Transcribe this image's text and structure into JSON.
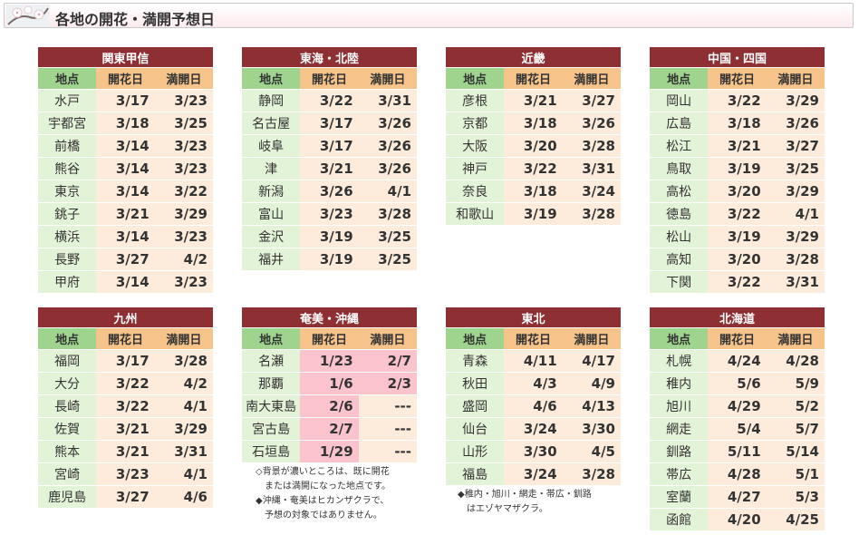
{
  "page": {
    "title": "各地の開花・満開予想日"
  },
  "columns": {
    "place": "地点",
    "bloom": "開花日",
    "full": "満開日"
  },
  "regions": [
    {
      "name": "関東甲信",
      "rows": [
        {
          "place": "水戸",
          "bloom": "3/17",
          "full": "3/23"
        },
        {
          "place": "宇都宮",
          "bloom": "3/18",
          "full": "3/25"
        },
        {
          "place": "前橋",
          "bloom": "3/14",
          "full": "3/23"
        },
        {
          "place": "熊谷",
          "bloom": "3/14",
          "full": "3/23"
        },
        {
          "place": "東京",
          "bloom": "3/14",
          "full": "3/22"
        },
        {
          "place": "銚子",
          "bloom": "3/21",
          "full": "3/29"
        },
        {
          "place": "横浜",
          "bloom": "3/14",
          "full": "3/23"
        },
        {
          "place": "長野",
          "bloom": "3/27",
          "full": "4/2"
        },
        {
          "place": "甲府",
          "bloom": "3/14",
          "full": "3/23"
        }
      ]
    },
    {
      "name": "東海・北陸",
      "rows": [
        {
          "place": "静岡",
          "bloom": "3/22",
          "full": "3/31"
        },
        {
          "place": "名古屋",
          "bloom": "3/17",
          "full": "3/26"
        },
        {
          "place": "岐阜",
          "bloom": "3/17",
          "full": "3/26"
        },
        {
          "place": "津",
          "bloom": "3/21",
          "full": "3/26"
        },
        {
          "place": "新潟",
          "bloom": "3/26",
          "full": "4/1"
        },
        {
          "place": "富山",
          "bloom": "3/23",
          "full": "3/28"
        },
        {
          "place": "金沢",
          "bloom": "3/19",
          "full": "3/25"
        },
        {
          "place": "福井",
          "bloom": "3/19",
          "full": "3/25"
        }
      ]
    },
    {
      "name": "近畿",
      "rows": [
        {
          "place": "彦根",
          "bloom": "3/21",
          "full": "3/27"
        },
        {
          "place": "京都",
          "bloom": "3/18",
          "full": "3/26"
        },
        {
          "place": "大阪",
          "bloom": "3/20",
          "full": "3/28"
        },
        {
          "place": "神戸",
          "bloom": "3/22",
          "full": "3/31"
        },
        {
          "place": "奈良",
          "bloom": "3/18",
          "full": "3/24"
        },
        {
          "place": "和歌山",
          "bloom": "3/19",
          "full": "3/28"
        }
      ]
    },
    {
      "name": "中国・四国",
      "rows": [
        {
          "place": "岡山",
          "bloom": "3/22",
          "full": "3/29"
        },
        {
          "place": "広島",
          "bloom": "3/18",
          "full": "3/26"
        },
        {
          "place": "松江",
          "bloom": "3/21",
          "full": "3/27"
        },
        {
          "place": "鳥取",
          "bloom": "3/19",
          "full": "3/25"
        },
        {
          "place": "高松",
          "bloom": "3/20",
          "full": "3/29"
        },
        {
          "place": "徳島",
          "bloom": "3/22",
          "full": "4/1"
        },
        {
          "place": "松山",
          "bloom": "3/19",
          "full": "3/29"
        },
        {
          "place": "高知",
          "bloom": "3/20",
          "full": "3/28"
        },
        {
          "place": "下関",
          "bloom": "3/22",
          "full": "3/31"
        }
      ]
    },
    {
      "name": "九州",
      "rows": [
        {
          "place": "福岡",
          "bloom": "3/17",
          "full": "3/28"
        },
        {
          "place": "大分",
          "bloom": "3/22",
          "full": "4/2"
        },
        {
          "place": "長崎",
          "bloom": "3/22",
          "full": "4/1"
        },
        {
          "place": "佐賀",
          "bloom": "3/21",
          "full": "3/29"
        },
        {
          "place": "熊本",
          "bloom": "3/21",
          "full": "3/31"
        },
        {
          "place": "宮崎",
          "bloom": "3/23",
          "full": "4/1"
        },
        {
          "place": "鹿児島",
          "bloom": "3/27",
          "full": "4/6"
        }
      ]
    },
    {
      "name": "奄美・沖縄",
      "rows": [
        {
          "place": "名瀬",
          "bloom": "1/23",
          "full": "2/7",
          "bloom_done": true,
          "full_done": true
        },
        {
          "place": "那覇",
          "bloom": "1/6",
          "full": "2/3",
          "bloom_done": true,
          "full_done": true
        },
        {
          "place": "南大東島",
          "bloom": "2/6",
          "full": "---",
          "bloom_done": true,
          "full_done": false
        },
        {
          "place": "宮古島",
          "bloom": "2/7",
          "full": "---",
          "bloom_done": true,
          "full_done": false
        },
        {
          "place": "石垣島",
          "bloom": "1/29",
          "full": "---",
          "bloom_done": true,
          "full_done": false
        }
      ]
    },
    {
      "name": "東北",
      "rows": [
        {
          "place": "青森",
          "bloom": "4/11",
          "full": "4/17"
        },
        {
          "place": "秋田",
          "bloom": "4/3",
          "full": "4/9"
        },
        {
          "place": "盛岡",
          "bloom": "4/6",
          "full": "4/13"
        },
        {
          "place": "仙台",
          "bloom": "3/24",
          "full": "3/30"
        },
        {
          "place": "山形",
          "bloom": "3/30",
          "full": "4/5"
        },
        {
          "place": "福島",
          "bloom": "3/24",
          "full": "3/28"
        }
      ]
    },
    {
      "name": "北海道",
      "rows": [
        {
          "place": "札幌",
          "bloom": "4/24",
          "full": "4/28"
        },
        {
          "place": "稚内",
          "bloom": "5/6",
          "full": "5/9"
        },
        {
          "place": "旭川",
          "bloom": "4/29",
          "full": "5/2"
        },
        {
          "place": "網走",
          "bloom": "5/4",
          "full": "5/7"
        },
        {
          "place": "釧路",
          "bloom": "5/11",
          "full": "5/14"
        },
        {
          "place": "帯広",
          "bloom": "4/28",
          "full": "5/1"
        },
        {
          "place": "室蘭",
          "bloom": "4/27",
          "full": "5/3"
        },
        {
          "place": "函館",
          "bloom": "4/20",
          "full": "4/25"
        }
      ]
    }
  ],
  "notes": {
    "okinawa": [
      "◇背景が濃いところは、既に開花",
      "　または満開になった地点です。",
      "◆沖縄・奄美はヒカンザクラで、",
      "　予想の対象ではありません。"
    ],
    "tohoku": [
      "◆稚内・旭川・網走・帯広・釧路",
      "　はエゾヤマザクラ。"
    ]
  },
  "colors": {
    "region_header": "#8e2f33",
    "place_header": "#9fd48f",
    "date_header": "#f6c48b",
    "place_cell": "#e3f3d8",
    "date_cell": "#fdebdc",
    "bloomed_cell": "#fbc4cc"
  },
  "icons": {
    "logo": "cherry-blossom-icon"
  }
}
